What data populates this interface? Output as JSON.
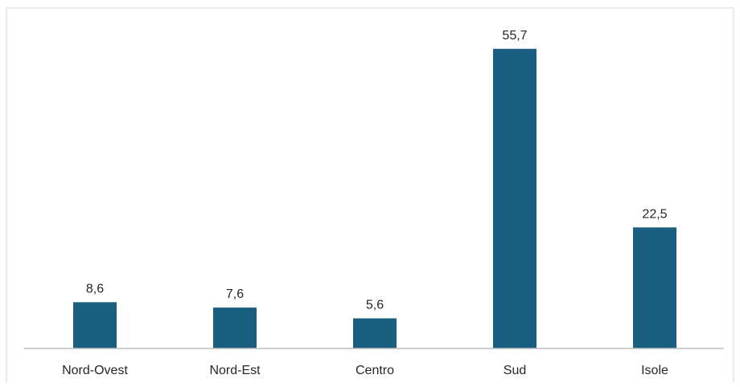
{
  "chart_data": {
    "type": "bar",
    "categories": [
      "Nord-Ovest",
      "Nord-Est",
      "Centro",
      "Sud",
      "Isole"
    ],
    "values": [
      8.6,
      7.6,
      5.6,
      55.7,
      22.5
    ],
    "value_labels": [
      "8,6",
      "7,6",
      "5,6",
      "55,7",
      "22,5"
    ],
    "title": "",
    "xlabel": "",
    "ylabel": "",
    "ylim": [
      0,
      60
    ],
    "grid": false,
    "legend": "none",
    "bar_color": "#1a5f80"
  }
}
